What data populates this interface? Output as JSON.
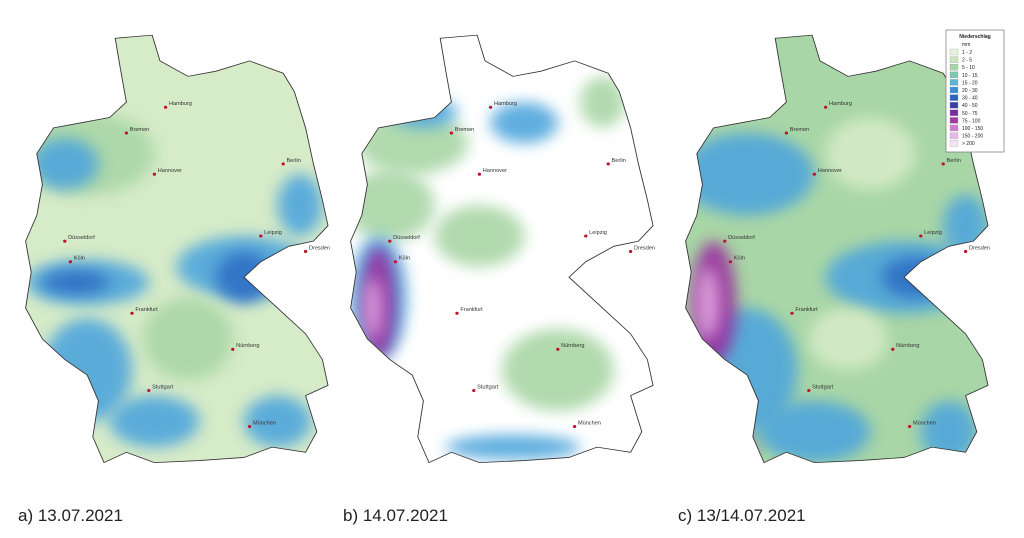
{
  "panels": [
    {
      "caption": "a)  13.07.2021"
    },
    {
      "caption": "b) 14.07.2021"
    },
    {
      "caption": "c) 13/14.07.2021"
    }
  ],
  "legend": {
    "title": "Niederschlag",
    "unit": "mm",
    "classes": [
      {
        "label": "1 - 2",
        "color": "#e6f2dc"
      },
      {
        "label": "2 - 5",
        "color": "#c9e6bd"
      },
      {
        "label": "5 - 10",
        "color": "#a5d6a3"
      },
      {
        "label": "10 - 15",
        "color": "#7fc6b4"
      },
      {
        "label": "15 - 20",
        "color": "#5bb3d6"
      },
      {
        "label": "20 - 30",
        "color": "#3d8fd6"
      },
      {
        "label": "30 - 40",
        "color": "#2d64c0"
      },
      {
        "label": "40 - 50",
        "color": "#3a3fa8"
      },
      {
        "label": "50 - 75",
        "color": "#7a2d9c"
      },
      {
        "label": "75 - 100",
        "color": "#a23aa6"
      },
      {
        "label": "100 - 150",
        "color": "#d07bd0"
      },
      {
        "label": "150 - 200",
        "color": "#e9b8e9"
      },
      {
        "label": "> 200",
        "color": "#f6e4f6"
      }
    ]
  },
  "cities": [
    "Hamburg",
    "Bremen",
    "Hannover",
    "Berlin",
    "Leipzig",
    "Dresden",
    "Düsseldorf",
    "Köln",
    "Frankfurt",
    "Nürnberg",
    "Stuttgart",
    "München"
  ]
}
